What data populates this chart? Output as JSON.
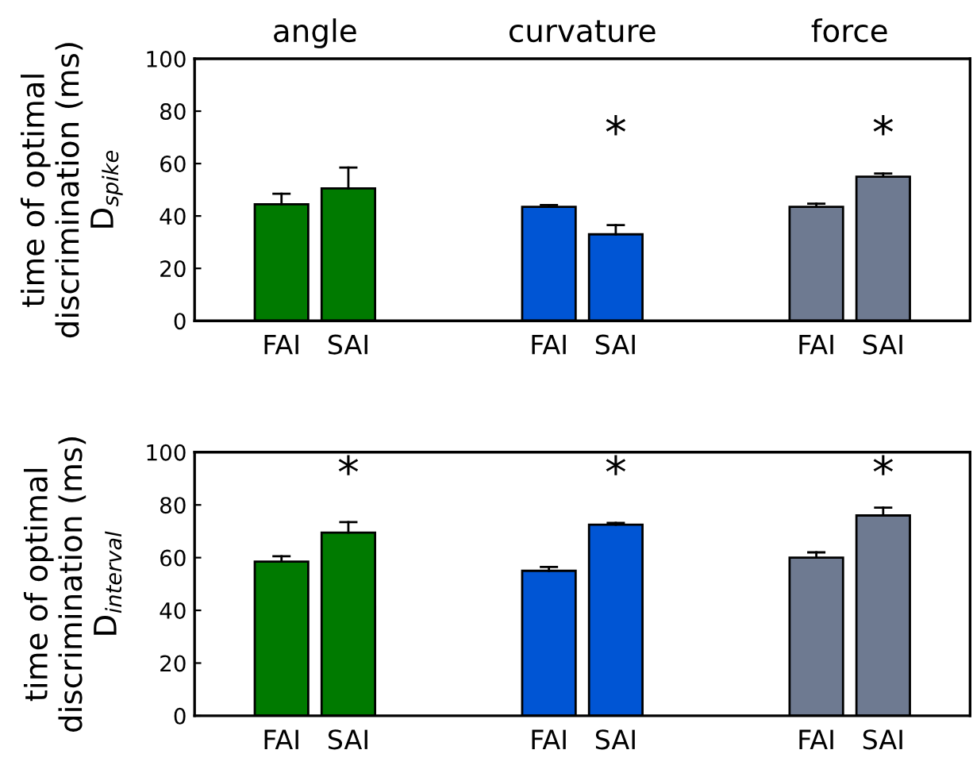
{
  "chart_data": [
    {
      "type": "bar",
      "ylabel": "time of optimal\ndiscrimination (ms)\nD$_{spike}$",
      "categories": [
        "FAI",
        "SAI",
        null,
        null,
        "FAI",
        "SAI",
        null,
        null,
        "FAI",
        "SAI"
      ],
      "values": [
        44.5,
        50.5,
        null,
        null,
        43.5,
        33,
        null,
        null,
        43.5,
        55
      ],
      "errors": [
        [
          44.5,
          48.5
        ],
        [
          50.5,
          58.5
        ],
        null,
        null,
        [
          43.5,
          44.2
        ],
        [
          33,
          36.5
        ],
        null,
        null,
        [
          43.5,
          44.7
        ],
        [
          55,
          56.2
        ]
      ],
      "colors": [
        "#007a00",
        "#007a00",
        null,
        null,
        "#0055d4",
        "#0055d4",
        null,
        null,
        "#6e7a91",
        "#6e7a91"
      ],
      "value_labels": [
        null,
        null,
        null,
        null,
        null,
        "*",
        null,
        null,
        null,
        "*"
      ],
      "annotations": [
        "angle",
        "curvature",
        "force"
      ],
      "ylim": [
        0,
        100
      ],
      "yticks": [
        0,
        20,
        40,
        60,
        80,
        100
      ],
      "grid": false,
      "legend": false
    },
    {
      "type": "bar",
      "ylabel": "time of optimal\ndiscrimination (ms)\nD$_{interval}$",
      "categories": [
        "FAI",
        "SAI",
        null,
        null,
        "FAI",
        "SAI",
        null,
        null,
        "FAI",
        "SAI"
      ],
      "values": [
        58.5,
        69.5,
        null,
        null,
        55,
        72.5,
        null,
        null,
        60,
        76
      ],
      "errors": [
        [
          58.5,
          60.5
        ],
        [
          69.5,
          73.5
        ],
        null,
        null,
        [
          55,
          56.5
        ],
        [
          72.5,
          73.2
        ],
        null,
        null,
        [
          60,
          62
        ],
        [
          76,
          79
        ]
      ],
      "colors": [
        "#007a00",
        "#007a00",
        null,
        null,
        "#0055d4",
        "#0055d4",
        null,
        null,
        "#6e7a91",
        "#6e7a91"
      ],
      "value_labels": [
        null,
        "*",
        null,
        null,
        null,
        "*",
        null,
        null,
        null,
        "*"
      ],
      "ylim": [
        0,
        100
      ],
      "yticks": [
        0,
        20,
        40,
        60,
        80,
        100
      ],
      "grid": false,
      "legend": false
    }
  ]
}
